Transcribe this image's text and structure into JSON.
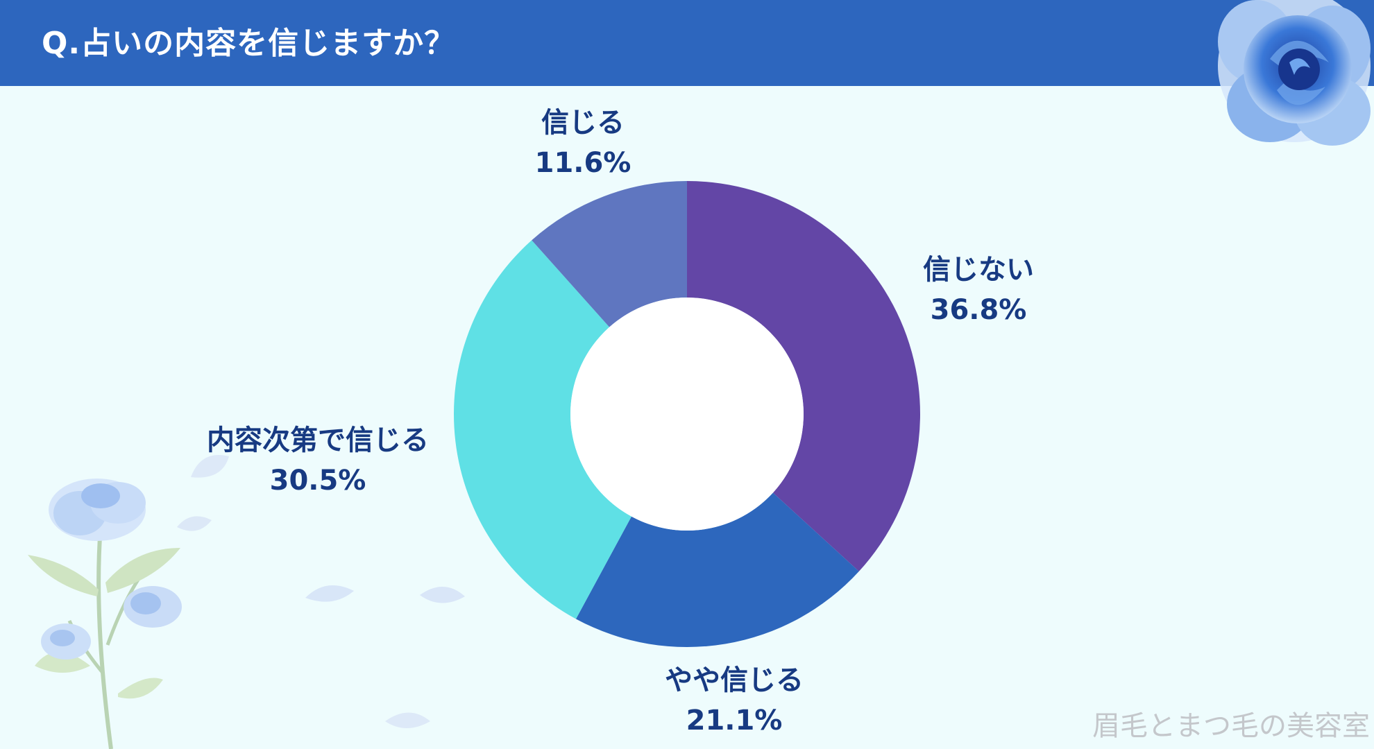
{
  "header": {
    "title": "Q.占いの内容を信じますか？"
  },
  "chart_data": {
    "type": "pie",
    "variant": "donut",
    "categories": [
      "信じない",
      "やや信じる",
      "内容次第で信じる",
      "信じる"
    ],
    "values": [
      36.8,
      21.1,
      30.5,
      11.6
    ],
    "value_labels": [
      "36.8%",
      "21.1%",
      "30.5%",
      "11.6%"
    ],
    "colors": [
      "#6346a6",
      "#2d67bd",
      "#5fe0e5",
      "#5f76c0"
    ],
    "legend": "none"
  },
  "watermark": "眉毛とまつ毛の美容室"
}
